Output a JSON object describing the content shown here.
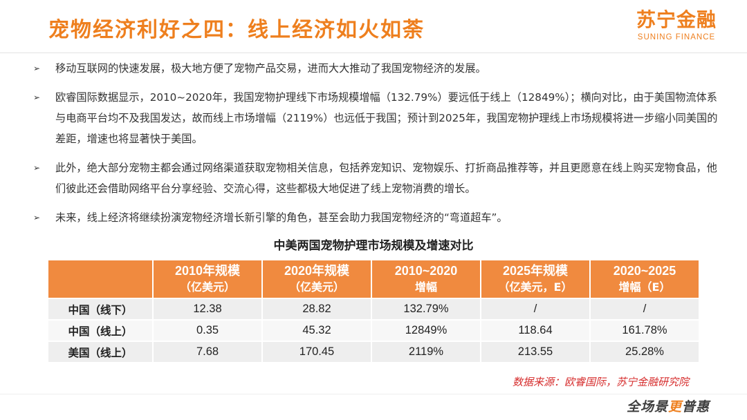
{
  "title": "宠物经济利好之四：线上经济如火如荼",
  "brand": {
    "name": "苏宁金融",
    "subname": "SUNING FINANCE"
  },
  "bullet_marker": "➢",
  "bullets": [
    "移动互联网的快速发展，极大地方便了宠物产品交易，进而大大推动了我国宠物经济的发展。",
    "欧睿国际数据显示，2010~2020年，我国宠物护理线下市场规模增幅（132.79%）要远低于线上（12849%）；横向对比，由于美国物流体系与电商平台均不及我国发达，故而线上市场增幅（2119%）也远低于我国；预计到2025年，我国宠物护理线上市场规模将进一步缩小同美国的差距，增速也将显著快于美国。",
    "此外，绝大部分宠物主都会通过网络渠道获取宠物相关信息，包括养宠知识、宠物娱乐、打折商品推荐等，并且更愿意在线上购买宠物食品，他们彼此还会借助网络平台分享经验、交流心得，这些都极大地促进了线上宠物消费的增长。",
    "未来，线上经济将继续扮演宠物经济增长新引擎的角色，甚至会助力我国宠物经济的“弯道超车”。"
  ],
  "table": {
    "title": "中美两国宠物护理市场规模及增速对比",
    "headers": [
      {
        "line1": "2010年规模",
        "line2": "（亿美元）"
      },
      {
        "line1": "2020年规模",
        "line2": "（亿美元）"
      },
      {
        "line1": "2010~2020",
        "line2": "增幅"
      },
      {
        "line1": "2025年规模",
        "line2": "（亿美元，E）"
      },
      {
        "line1": "2020~2025",
        "line2": "增幅（E）"
      }
    ],
    "rows": [
      {
        "label": "中国（线下）",
        "values": [
          "12.38",
          "28.82",
          "132.79%",
          "/",
          "/"
        ]
      },
      {
        "label": "中国（线上）",
        "values": [
          "0.35",
          "45.32",
          "12849%",
          "118.64",
          "161.78%"
        ]
      },
      {
        "label": "美国（线上）",
        "values": [
          "7.68",
          "170.45",
          "2119%",
          "213.55",
          "25.28%"
        ]
      }
    ]
  },
  "source": "数据来源：欧睿国际，苏宁金融研究院",
  "slogan": {
    "part1": "全场景",
    "part2": "更",
    "part3": "普惠"
  },
  "colors": {
    "accent": "#ee7f1e",
    "table_header": "#f08a3f",
    "source_text": "#d62d2d"
  }
}
